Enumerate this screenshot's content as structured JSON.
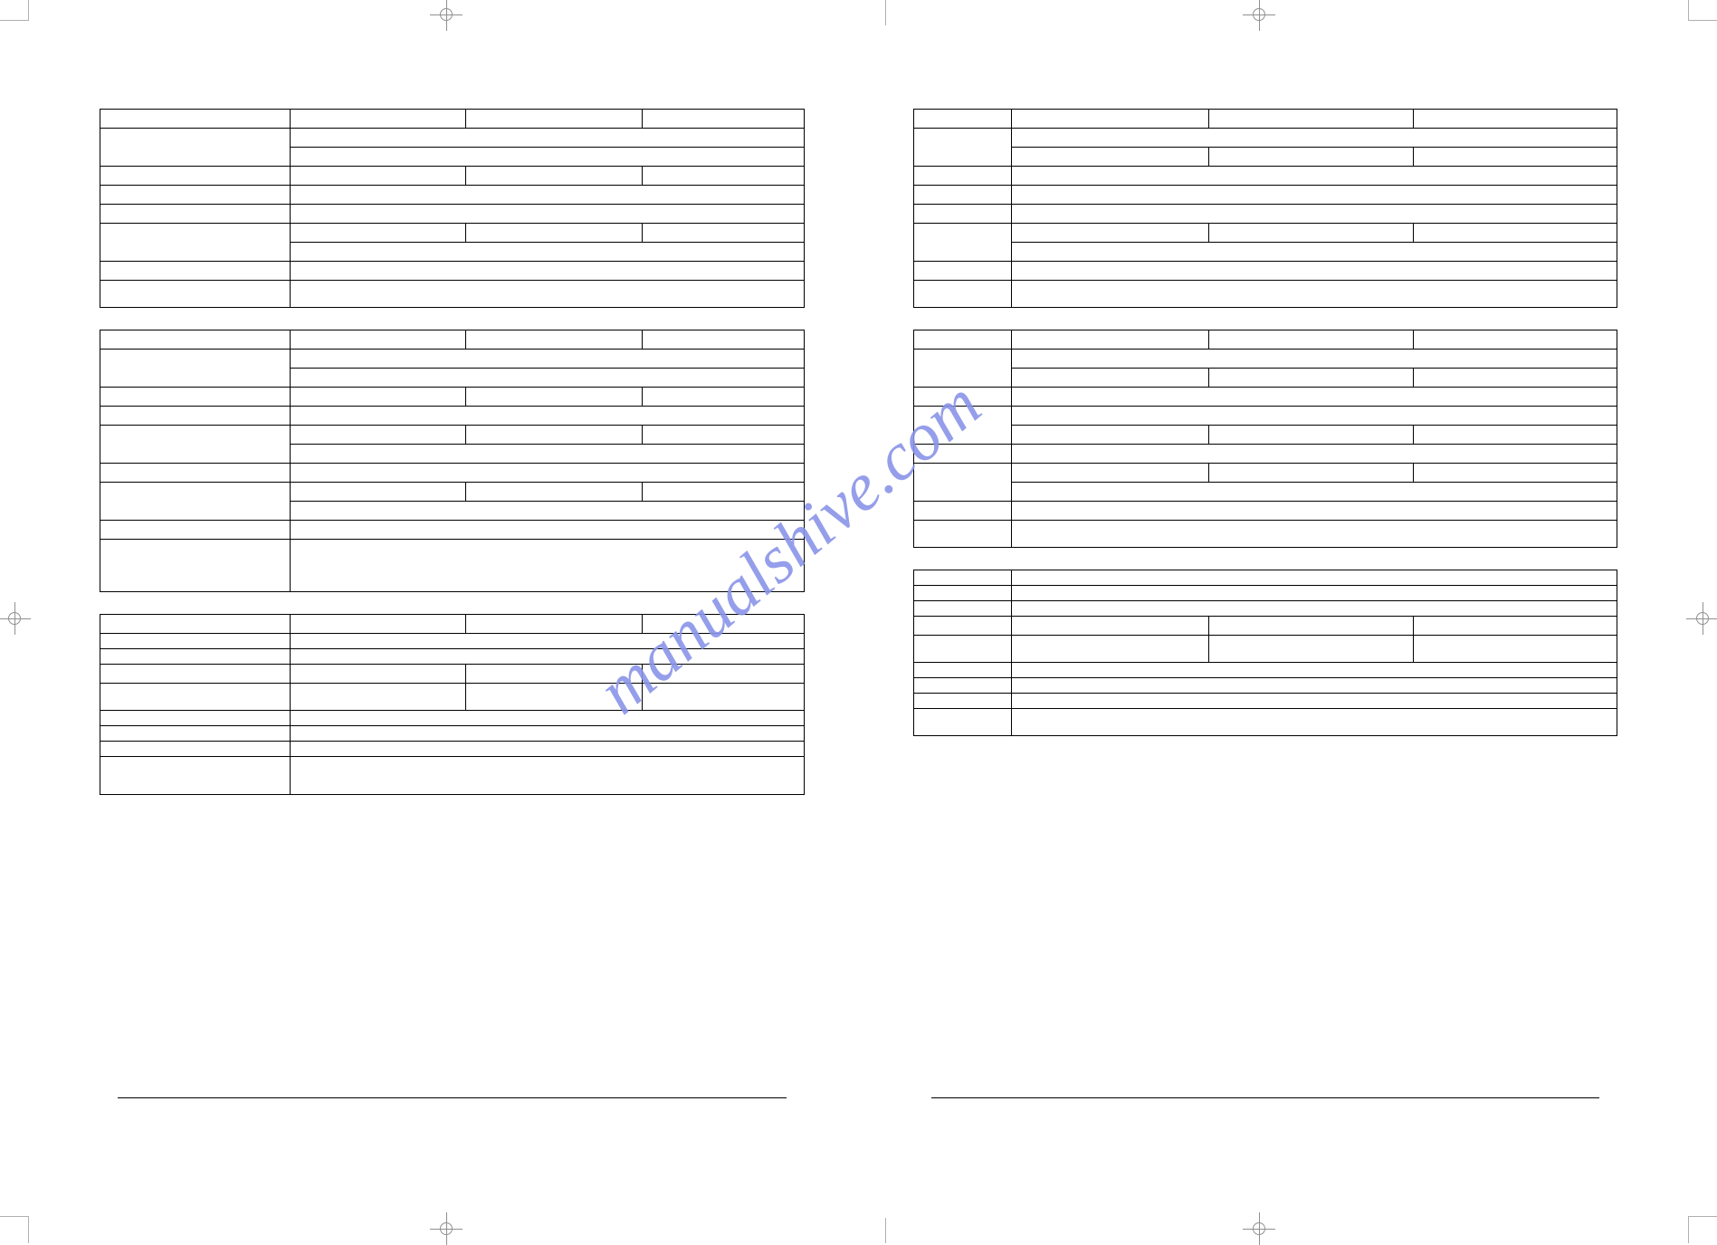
{
  "watermark": {
    "text": "manualshive.com",
    "color": "#8a94e8"
  },
  "print_marks": {
    "crop_color": "#b0b0b0",
    "reg_color": "#909090"
  },
  "left_page": {
    "tables": [
      {
        "name": "table-1",
        "rows": [
          {
            "cells": [
              {
                "wpct": 27
              },
              {
                "wpct": 25
              },
              {
                "wpct": 25
              },
              {
                "wpct": 23
              }
            ]
          },
          {
            "cells": [
              {
                "wpct": 27,
                "rowspan": 2
              },
              {
                "wpct": 73,
                "colspan": 3,
                "dashb": true
              }
            ]
          },
          {
            "cells": [
              {
                "wpct": 73,
                "colspan": 3
              }
            ]
          },
          {
            "cells": [
              {
                "wpct": 27
              },
              {
                "wpct": 25
              },
              {
                "wpct": 25
              },
              {
                "wpct": 23
              }
            ]
          },
          {
            "cells": [
              {
                "wpct": 27
              },
              {
                "wpct": 73,
                "colspan": 3
              }
            ]
          },
          {
            "cells": [
              {
                "wpct": 27
              },
              {
                "wpct": 73,
                "colspan": 3
              }
            ]
          },
          {
            "cells": [
              {
                "wpct": 27,
                "rowspan": 2,
                "tall": true
              },
              {
                "wpct": 25,
                "dashb": true
              },
              {
                "wpct": 25,
                "dashb": true
              },
              {
                "wpct": 23,
                "dashb": true
              }
            ]
          },
          {
            "cells": [
              {
                "wpct": 73,
                "colspan": 3
              }
            ]
          },
          {
            "cells": [
              {
                "wpct": 27
              },
              {
                "wpct": 73,
                "colspan": 3
              }
            ]
          },
          {
            "cells": [
              {
                "wpct": 27,
                "tall": true
              },
              {
                "wpct": 73,
                "colspan": 3,
                "tall": true
              }
            ]
          }
        ]
      },
      {
        "name": "table-2",
        "rows": [
          {
            "cells": [
              {
                "wpct": 27
              },
              {
                "wpct": 25
              },
              {
                "wpct": 25
              },
              {
                "wpct": 23
              }
            ]
          },
          {
            "cells": [
              {
                "wpct": 27,
                "rowspan": 2
              },
              {
                "wpct": 73,
                "colspan": 3,
                "dashb": true
              }
            ]
          },
          {
            "cells": [
              {
                "wpct": 73,
                "colspan": 3
              }
            ]
          },
          {
            "cells": [
              {
                "wpct": 27
              },
              {
                "wpct": 25
              },
              {
                "wpct": 25
              },
              {
                "wpct": 23
              }
            ]
          },
          {
            "cells": [
              {
                "wpct": 27
              },
              {
                "wpct": 73,
                "colspan": 3
              }
            ]
          },
          {
            "cells": [
              {
                "wpct": 27,
                "rowspan": 2
              },
              {
                "wpct": 25,
                "dashb": true
              },
              {
                "wpct": 25,
                "dashb": true
              },
              {
                "wpct": 23,
                "dashb": true
              }
            ]
          },
          {
            "cells": [
              {
                "wpct": 73,
                "colspan": 3
              }
            ]
          },
          {
            "cells": [
              {
                "wpct": 27
              },
              {
                "wpct": 73,
                "colspan": 3
              }
            ]
          },
          {
            "cells": [
              {
                "wpct": 27,
                "rowspan": 2
              },
              {
                "wpct": 25,
                "dashb": true
              },
              {
                "wpct": 25,
                "dashb": true
              },
              {
                "wpct": 23,
                "dashb": true
              }
            ]
          },
          {
            "cells": [
              {
                "wpct": 73,
                "colspan": 3
              }
            ]
          },
          {
            "cells": [
              {
                "wpct": 27
              },
              {
                "wpct": 73,
                "colspan": 3
              }
            ]
          },
          {
            "cells": [
              {
                "wpct": 27,
                "vtall": true
              },
              {
                "wpct": 73,
                "colspan": 3,
                "vtall": true
              }
            ]
          }
        ]
      },
      {
        "name": "table-3",
        "rows": [
          {
            "cells": [
              {
                "wpct": 27
              },
              {
                "wpct": 25
              },
              {
                "wpct": 25
              },
              {
                "wpct": 23
              }
            ]
          },
          {
            "cells": [
              {
                "wpct": 27,
                "short": true
              },
              {
                "wpct": 73,
                "colspan": 3,
                "short": true
              }
            ]
          },
          {
            "cells": [
              {
                "wpct": 27,
                "short": true
              },
              {
                "wpct": 73,
                "colspan": 3,
                "short": true
              }
            ]
          },
          {
            "cells": [
              {
                "wpct": 27
              },
              {
                "wpct": 25
              },
              {
                "wpct": 25
              },
              {
                "wpct": 23
              }
            ]
          },
          {
            "cells": [
              {
                "wpct": 27,
                "tall": true
              },
              {
                "wpct": 25,
                "tall": true
              },
              {
                "wpct": 25,
                "tall": true
              },
              {
                "wpct": 23,
                "tall": true
              }
            ]
          },
          {
            "cells": [
              {
                "wpct": 27,
                "short": true
              },
              {
                "wpct": 73,
                "colspan": 3,
                "short": true
              }
            ]
          },
          {
            "cells": [
              {
                "wpct": 27,
                "short": true
              },
              {
                "wpct": 73,
                "colspan": 3,
                "short": true
              }
            ]
          },
          {
            "cells": [
              {
                "wpct": 27,
                "short": true
              },
              {
                "wpct": 73,
                "colspan": 3,
                "short": true
              }
            ]
          },
          {
            "cells": [
              {
                "wpct": 27,
                "xtall": true
              },
              {
                "wpct": 73,
                "colspan": 3,
                "xtall": true
              }
            ]
          }
        ]
      }
    ]
  },
  "right_page": {
    "tables": [
      {
        "name": "table-4",
        "rows": [
          {
            "cells": [
              {
                "wpct": 14
              },
              {
                "wpct": 28
              },
              {
                "wpct": 29
              },
              {
                "wpct": 29
              }
            ]
          },
          {
            "cells": [
              {
                "wpct": 14,
                "rowspan": 2
              },
              {
                "wpct": 86,
                "colspan": 3,
                "dashb": true
              }
            ]
          },
          {
            "cells": [
              {
                "wpct": 28
              },
              {
                "wpct": 29
              },
              {
                "wpct": 29
              }
            ]
          },
          {
            "cells": [
              {
                "wpct": 14
              },
              {
                "wpct": 86,
                "colspan": 3
              }
            ]
          },
          {
            "cells": [
              {
                "wpct": 14
              },
              {
                "wpct": 86,
                "colspan": 3
              }
            ]
          },
          {
            "cells": [
              {
                "wpct": 14
              },
              {
                "wpct": 86,
                "colspan": 3
              }
            ]
          },
          {
            "cells": [
              {
                "wpct": 14,
                "rowspan": 2
              },
              {
                "wpct": 28,
                "dashb": true
              },
              {
                "wpct": 29,
                "dashb": true
              },
              {
                "wpct": 29,
                "dashb": true
              }
            ]
          },
          {
            "cells": [
              {
                "wpct": 86,
                "colspan": 3
              }
            ]
          },
          {
            "cells": [
              {
                "wpct": 14
              },
              {
                "wpct": 86,
                "colspan": 3
              }
            ]
          },
          {
            "cells": [
              {
                "wpct": 14,
                "tall": true
              },
              {
                "wpct": 86,
                "colspan": 3,
                "tall": true
              }
            ]
          }
        ]
      },
      {
        "name": "table-5",
        "rows": [
          {
            "cells": [
              {
                "wpct": 14
              },
              {
                "wpct": 28
              },
              {
                "wpct": 29
              },
              {
                "wpct": 29
              }
            ]
          },
          {
            "cells": [
              {
                "wpct": 14,
                "rowspan": 2
              },
              {
                "wpct": 86,
                "colspan": 3,
                "dashb": true
              }
            ]
          },
          {
            "cells": [
              {
                "wpct": 28
              },
              {
                "wpct": 29
              },
              {
                "wpct": 29
              }
            ]
          },
          {
            "cells": [
              {
                "wpct": 14
              },
              {
                "wpct": 86,
                "colspan": 3
              }
            ]
          },
          {
            "cells": [
              {
                "wpct": 14,
                "rowspan": 2
              },
              {
                "wpct": 86,
                "colspan": 3,
                "dashb": true
              }
            ]
          },
          {
            "cells": [
              {
                "wpct": 28
              },
              {
                "wpct": 29
              },
              {
                "wpct": 29
              }
            ]
          },
          {
            "cells": [
              {
                "wpct": 14
              },
              {
                "wpct": 86,
                "colspan": 3
              }
            ]
          },
          {
            "cells": [
              {
                "wpct": 14,
                "rowspan": 2
              },
              {
                "wpct": 28,
                "dashb": true
              },
              {
                "wpct": 29,
                "dashb": true
              },
              {
                "wpct": 29,
                "dashb": true
              }
            ]
          },
          {
            "cells": [
              {
                "wpct": 86,
                "colspan": 3
              }
            ]
          },
          {
            "cells": [
              {
                "wpct": 14
              },
              {
                "wpct": 86,
                "colspan": 3
              }
            ]
          },
          {
            "cells": [
              {
                "wpct": 14,
                "tall": true
              },
              {
                "wpct": 86,
                "colspan": 3,
                "tall": true
              }
            ]
          }
        ]
      },
      {
        "name": "table-6",
        "rows": [
          {
            "cells": [
              {
                "wpct": 14,
                "short": true
              },
              {
                "wpct": 86,
                "colspan": 3,
                "short": true
              }
            ]
          },
          {
            "cells": [
              {
                "wpct": 14,
                "short": true
              },
              {
                "wpct": 86,
                "colspan": 3,
                "short": true
              }
            ]
          },
          {
            "cells": [
              {
                "wpct": 14,
                "short": true
              },
              {
                "wpct": 86,
                "colspan": 3,
                "short": true
              }
            ]
          },
          {
            "cells": [
              {
                "wpct": 14
              },
              {
                "wpct": 28
              },
              {
                "wpct": 29
              },
              {
                "wpct": 29
              }
            ]
          },
          {
            "cells": [
              {
                "wpct": 14,
                "tall": true
              },
              {
                "wpct": 28,
                "tall": true
              },
              {
                "wpct": 29,
                "tall": true
              },
              {
                "wpct": 29,
                "tall": true
              }
            ]
          },
          {
            "cells": [
              {
                "wpct": 14,
                "short": true
              },
              {
                "wpct": 86,
                "colspan": 3,
                "short": true
              }
            ]
          },
          {
            "cells": [
              {
                "wpct": 14,
                "short": true
              },
              {
                "wpct": 86,
                "colspan": 3,
                "short": true
              }
            ]
          },
          {
            "cells": [
              {
                "wpct": 14,
                "short": true
              },
              {
                "wpct": 86,
                "colspan": 3,
                "short": true
              }
            ]
          },
          {
            "cells": [
              {
                "wpct": 14,
                "tall": true
              },
              {
                "wpct": 86,
                "colspan": 3,
                "tall": true
              }
            ]
          }
        ]
      }
    ]
  }
}
